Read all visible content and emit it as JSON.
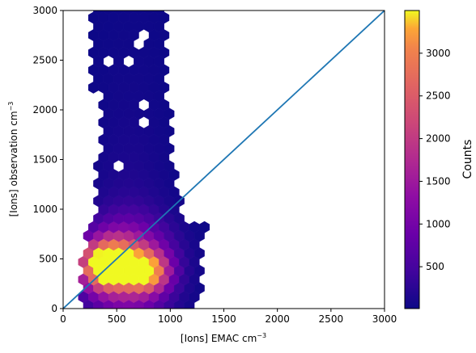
{
  "chart_data": {
    "type": "hexbin",
    "xlabel": {
      "main": "[Ions] EMAC cm",
      "sup": "−3"
    },
    "ylabel": {
      "main": "[Ions] observation cm",
      "sup": "−3"
    },
    "xlim": [
      0,
      3000
    ],
    "ylim": [
      0,
      3000
    ],
    "xticks": [
      "0",
      "500",
      "1000",
      "1500",
      "2000",
      "2500",
      "3000"
    ],
    "yticks": [
      "0",
      "500",
      "1000",
      "1500",
      "2000",
      "2500",
      "3000"
    ],
    "reference_line": {
      "x": [
        0,
        3000
      ],
      "y": [
        0,
        3000
      ],
      "color": "#1f77b4"
    },
    "colorbar": {
      "label": "Counts",
      "range": [
        10,
        3500
      ],
      "ticks": [
        "500",
        "1000",
        "1500",
        "2000",
        "2500",
        "3000"
      ],
      "colormap": "plasma"
    },
    "density_clusters": [
      {
        "x": 400,
        "y": 430,
        "peak": 3400,
        "spread_x": 170,
        "spread_y": 170
      },
      {
        "x": 780,
        "y": 370,
        "peak": 2700,
        "spread_x": 140,
        "spread_y": 140
      },
      {
        "x": 600,
        "y": 500,
        "peak": 1600,
        "spread_x": 260,
        "spread_y": 260
      }
    ]
  }
}
